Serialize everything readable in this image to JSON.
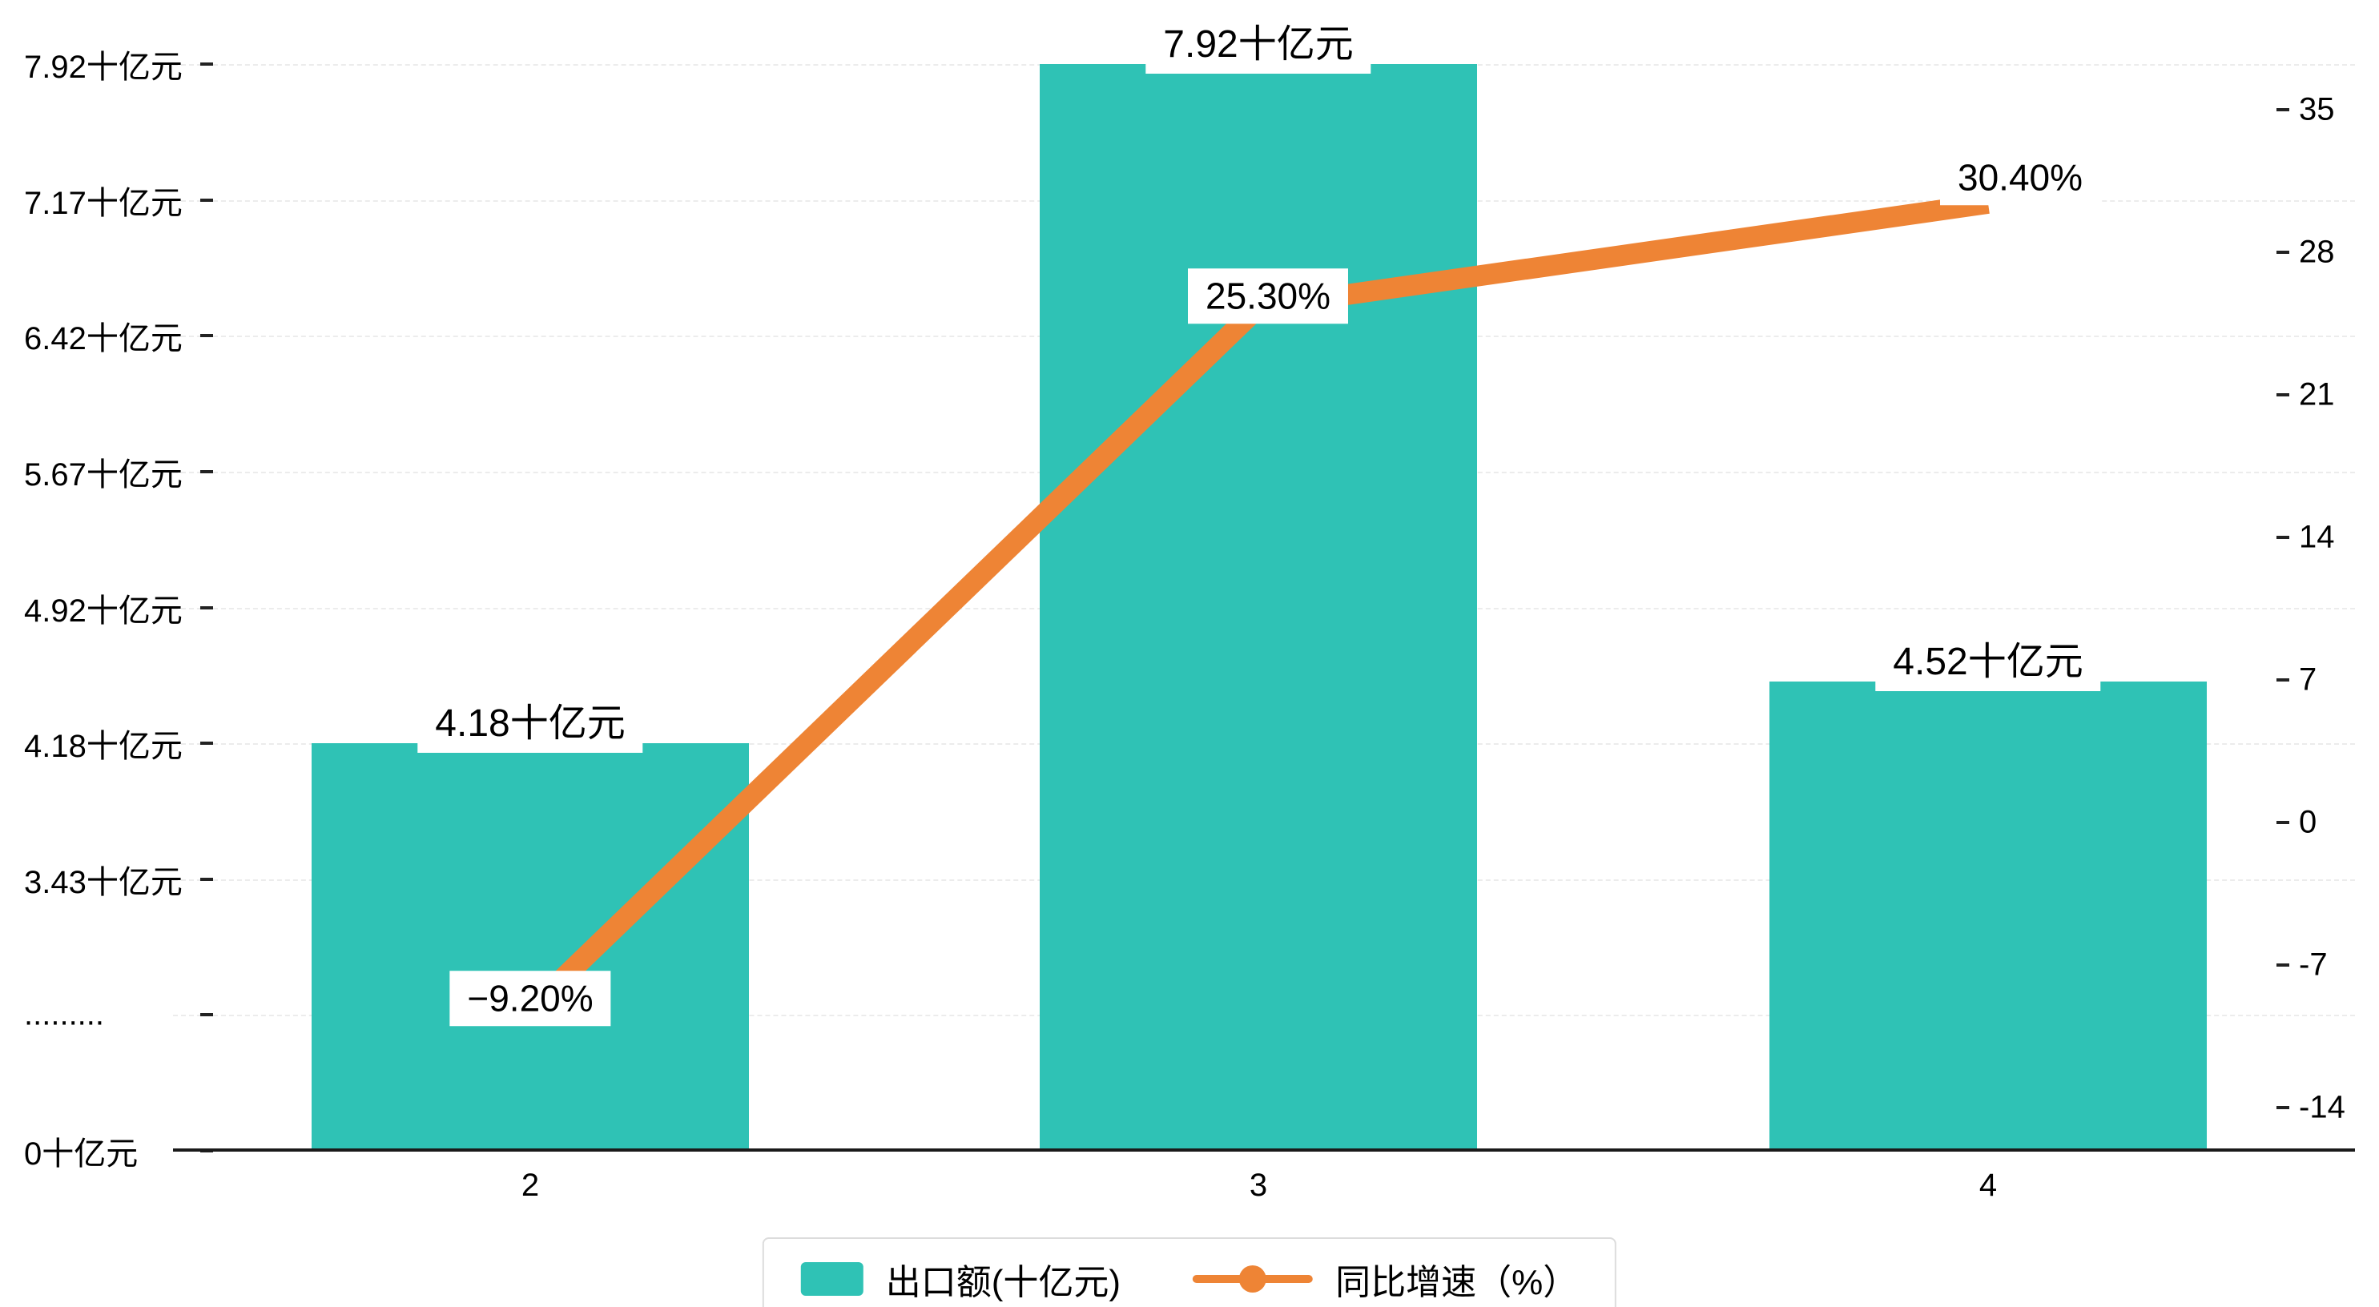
{
  "chart_data": {
    "type": "bar+line",
    "categories": [
      "2",
      "3",
      "4"
    ],
    "series": [
      {
        "name": "出口额(十亿元)",
        "type": "bar",
        "color": "#2fc2b5",
        "values": [
          4.18,
          7.92,
          4.52
        ],
        "data_labels": [
          "4.18十亿元",
          "7.92十亿元",
          "4.52十亿元"
        ]
      },
      {
        "name": "同比增速（%）",
        "type": "line",
        "color": "#ee8435",
        "values": [
          -9.2,
          25.3,
          30.4
        ],
        "data_labels": [
          "−9.20%",
          "25.30%",
          "30.40%"
        ]
      }
    ],
    "left_axis": {
      "unit": "十亿元",
      "ticks": [
        "7.92十亿元",
        "7.17十亿元",
        "6.42十亿元",
        "5.67十亿元",
        "4.92十亿元",
        "4.18十亿元",
        "3.43十亿元",
        ".........",
        "0十亿元"
      ],
      "tick_values": [
        7.92,
        7.17,
        6.42,
        5.67,
        4.92,
        4.18,
        3.43,
        null,
        0
      ],
      "broken_axis": true
    },
    "right_axis": {
      "ticks": [
        "35",
        "28",
        "21",
        "14",
        "7",
        "0",
        "-7",
        "-14"
      ],
      "tick_values": [
        35,
        28,
        21,
        14,
        7,
        0,
        -7,
        -14
      ],
      "range": [
        -14,
        35
      ]
    },
    "legend": {
      "position": "bottom",
      "items": [
        "出口额(十亿元)",
        "同比增速（%）"
      ]
    },
    "grid": "horizontal-dashed",
    "background": "#ffffff"
  }
}
